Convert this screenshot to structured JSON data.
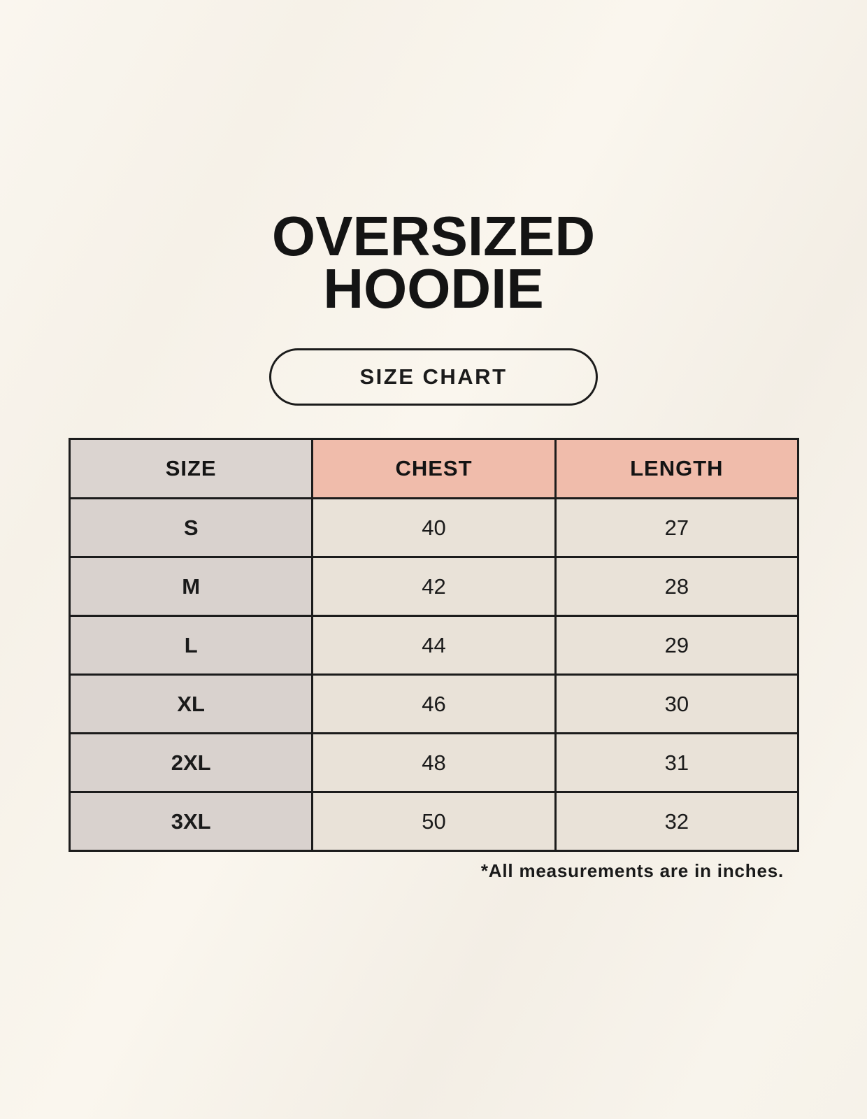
{
  "page": {
    "background_color": "#f8f4ec"
  },
  "title": {
    "line1": "OVERSIZED",
    "line2": "HOODIE"
  },
  "size_chart_button": {
    "label": "SIZE CHART"
  },
  "table": {
    "columns": [
      "SIZE",
      "CHEST",
      "LENGTH"
    ],
    "rows": [
      {
        "size": "S",
        "chest": "40",
        "length": "27"
      },
      {
        "size": "M",
        "chest": "42",
        "length": "28"
      },
      {
        "size": "L",
        "chest": "44",
        "length": "29"
      },
      {
        "size": "XL",
        "chest": "46",
        "length": "30"
      },
      {
        "size": "2XL",
        "chest": "48",
        "length": "31"
      },
      {
        "size": "3XL",
        "chest": "50",
        "length": "32"
      }
    ],
    "colors": {
      "size_header_bg": "#dbd4d0",
      "measure_header_bg": "#f0bcab",
      "size_column_bg": "#d9d2ce",
      "value_cell_bg": "#e9e2d8",
      "border": "#1c1c1c",
      "text": "#161616"
    }
  },
  "footnote": "*All measurements are in inches."
}
